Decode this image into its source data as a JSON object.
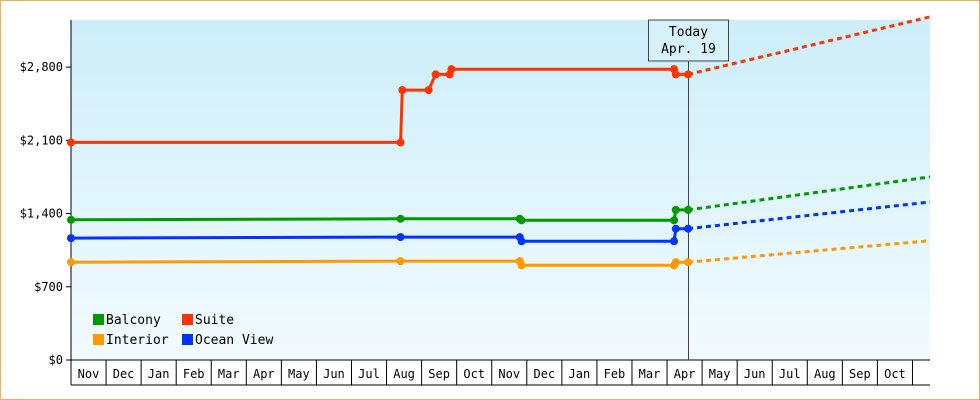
{
  "chart_data": {
    "type": "line",
    "title": "",
    "xlabel": "",
    "ylabel": "",
    "y_ticks": [
      "$0",
      "$700",
      "$1,400",
      "$2,100",
      "$2,800"
    ],
    "y_tick_values": [
      0,
      700,
      1400,
      2100,
      2800
    ],
    "ylim": [
      0,
      3250
    ],
    "months": [
      "Nov",
      "Dec",
      "Jan",
      "Feb",
      "Mar",
      "Apr",
      "May",
      "Jun",
      "Jul",
      "Aug",
      "Sep",
      "Oct",
      "Nov",
      "Dec",
      "Jan",
      "Feb",
      "Mar",
      "Apr",
      "May",
      "Jun",
      "Jul",
      "Aug",
      "Sep",
      "Oct"
    ],
    "today_label": {
      "line1": "Today",
      "line2": "Apr. 19",
      "x": 17.6
    },
    "x_range": [
      0,
      24.5
    ],
    "legend": {
      "placement": "bottom-left"
    },
    "series": [
      {
        "name": "Suite",
        "color": "#ff3300",
        "points": [
          [
            0,
            2080
          ],
          [
            9.4,
            2080
          ],
          [
            9.45,
            2580
          ],
          [
            10.2,
            2580
          ],
          [
            10.4,
            2730
          ],
          [
            10.8,
            2730
          ],
          [
            10.85,
            2780
          ],
          [
            17.2,
            2780
          ],
          [
            17.25,
            2730
          ],
          [
            17.6,
            2730
          ]
        ],
        "markers": [
          [
            0,
            2080
          ],
          [
            9.4,
            2080
          ],
          [
            9.45,
            2580
          ],
          [
            10.2,
            2580
          ],
          [
            10.4,
            2730
          ],
          [
            10.8,
            2730
          ],
          [
            10.85,
            2780
          ],
          [
            17.2,
            2780
          ],
          [
            17.25,
            2730
          ],
          [
            17.6,
            2730
          ]
        ],
        "forecast": [
          [
            17.6,
            2730
          ],
          [
            24.5,
            3280
          ]
        ]
      },
      {
        "name": "Balcony",
        "color": "#009900",
        "points": [
          [
            0,
            1340
          ],
          [
            9.4,
            1350
          ],
          [
            12.8,
            1350
          ],
          [
            12.85,
            1335
          ],
          [
            17.2,
            1335
          ],
          [
            17.25,
            1435
          ],
          [
            17.6,
            1435
          ]
        ],
        "markers": [
          [
            0,
            1340
          ],
          [
            9.4,
            1350
          ],
          [
            12.8,
            1350
          ],
          [
            12.85,
            1335
          ],
          [
            17.2,
            1335
          ],
          [
            17.25,
            1435
          ],
          [
            17.6,
            1435
          ]
        ],
        "forecast": [
          [
            17.6,
            1435
          ],
          [
            24.5,
            1750
          ]
        ]
      },
      {
        "name": "Ocean View",
        "color": "#0033ff",
        "points": [
          [
            0,
            1165
          ],
          [
            9.4,
            1175
          ],
          [
            12.8,
            1175
          ],
          [
            12.85,
            1135
          ],
          [
            17.2,
            1135
          ],
          [
            17.25,
            1255
          ],
          [
            17.6,
            1255
          ]
        ],
        "markers": [
          [
            0,
            1165
          ],
          [
            9.4,
            1175
          ],
          [
            12.8,
            1175
          ],
          [
            12.85,
            1135
          ],
          [
            17.2,
            1135
          ],
          [
            17.25,
            1255
          ],
          [
            17.6,
            1255
          ]
        ],
        "forecast": [
          [
            17.6,
            1255
          ],
          [
            24.5,
            1510
          ]
        ]
      },
      {
        "name": "Interior",
        "color": "#ff9900",
        "points": [
          [
            0,
            935
          ],
          [
            9.4,
            945
          ],
          [
            12.8,
            945
          ],
          [
            12.85,
            905
          ],
          [
            17.2,
            905
          ],
          [
            17.25,
            935
          ],
          [
            17.6,
            935
          ]
        ],
        "markers": [
          [
            0,
            935
          ],
          [
            9.4,
            945
          ],
          [
            12.8,
            945
          ],
          [
            12.85,
            905
          ],
          [
            17.2,
            905
          ],
          [
            17.25,
            935
          ],
          [
            17.6,
            935
          ]
        ],
        "forecast": [
          [
            17.6,
            935
          ],
          [
            24.5,
            1140
          ]
        ]
      }
    ],
    "legend_order": [
      "Balcony",
      "Suite",
      "Interior",
      "Ocean View"
    ]
  }
}
